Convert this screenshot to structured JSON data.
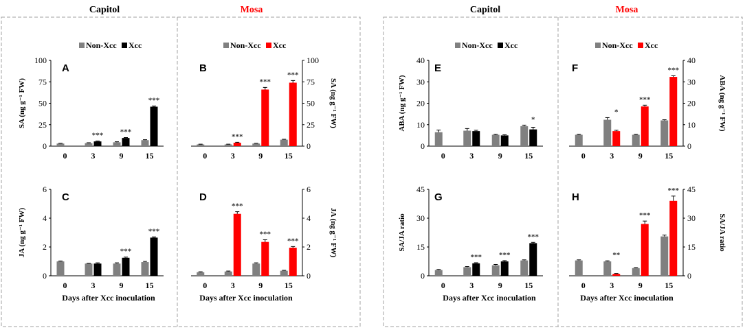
{
  "colors": {
    "non": "#808080",
    "capitol": "#000000",
    "mosa": "#ff0000",
    "mosa_title": "#ff0000",
    "frame": "#a0a0a0"
  },
  "headers": {
    "left_capitol": "Capitol",
    "left_mosa": "Mosa",
    "right_capitol": "Capitol",
    "right_mosa": "Mosa"
  },
  "legend": {
    "non": "Non-Xcc",
    "xcc": "Xcc"
  },
  "xlabel": "Days after Xcc inoculation",
  "chart_data": [
    {
      "id": "A",
      "type": "bar",
      "variety": "Capitol",
      "ylabel": "SA (ng g⁻¹ FW)",
      "ylim": [
        0,
        100
      ],
      "yticks": [
        "0",
        "25",
        "50",
        "75",
        "100"
      ],
      "categories": [
        "0",
        "3",
        "9",
        "15"
      ],
      "series": [
        {
          "name": "Non-Xcc",
          "values": [
            3,
            3.5,
            4.5,
            7
          ]
        },
        {
          "name": "Xcc",
          "values": [
            null,
            5.5,
            9.5,
            46
          ]
        }
      ],
      "errors": [
        [
          0.3,
          0.5,
          0.6,
          0.5
        ],
        [
          null,
          0.5,
          0.5,
          0.8
        ]
      ],
      "stars": [
        null,
        "***",
        "***",
        "***"
      ]
    },
    {
      "id": "B",
      "type": "bar",
      "variety": "Mosa",
      "ylabel": "SA (ng g⁻¹ FW)",
      "ylim": [
        0,
        100
      ],
      "yticks": [
        "0",
        "25",
        "50",
        "75",
        "100"
      ],
      "categories": [
        "0",
        "3",
        "9",
        "15"
      ],
      "series": [
        {
          "name": "Non-Xcc",
          "values": [
            2,
            2,
            3,
            7.5
          ]
        },
        {
          "name": "Xcc",
          "values": [
            null,
            4,
            66,
            74
          ]
        }
      ],
      "errors": [
        [
          0.3,
          0.3,
          0.3,
          0.5
        ],
        [
          null,
          0.5,
          2.5,
          2.5
        ]
      ],
      "stars": [
        null,
        "***",
        "***",
        "***"
      ]
    },
    {
      "id": "C",
      "type": "bar",
      "variety": "Capitol",
      "ylabel": "JA (ng g⁻¹ FW)",
      "ylim": [
        0,
        6
      ],
      "yticks": [
        "0",
        "2",
        "4",
        "6"
      ],
      "categories": [
        "0",
        "3",
        "9",
        "15"
      ],
      "series": [
        {
          "name": "Non-Xcc",
          "values": [
            1.0,
            0.85,
            0.85,
            0.95
          ]
        },
        {
          "name": "Xcc",
          "values": [
            null,
            0.85,
            1.25,
            2.65
          ]
        }
      ],
      "errors": [
        [
          0.03,
          0.03,
          0.05,
          0.05
        ],
        [
          null,
          0.05,
          0.05,
          0.05
        ]
      ],
      "stars": [
        null,
        null,
        "***",
        "***"
      ]
    },
    {
      "id": "D",
      "type": "bar",
      "variety": "Mosa",
      "ylabel": "JA (ng g⁻¹ FW)",
      "ylim": [
        0,
        6
      ],
      "yticks": [
        "0",
        "2",
        "4",
        "6"
      ],
      "categories": [
        "0",
        "3",
        "9",
        "15"
      ],
      "series": [
        {
          "name": "Non-Xcc",
          "values": [
            0.25,
            0.3,
            0.85,
            0.35
          ]
        },
        {
          "name": "Xcc",
          "values": [
            null,
            4.3,
            2.35,
            1.95
          ]
        }
      ],
      "errors": [
        [
          0.03,
          0.03,
          0.05,
          0.03
        ],
        [
          null,
          0.15,
          0.15,
          0.08
        ]
      ],
      "stars": [
        null,
        "***",
        "***",
        "***"
      ]
    },
    {
      "id": "E",
      "type": "bar",
      "variety": "Capitol",
      "ylabel": "ABA (ng g⁻¹ FW)",
      "ylim": [
        0,
        40
      ],
      "yticks": [
        "0",
        "10",
        "20",
        "30",
        "40"
      ],
      "categories": [
        "0",
        "3",
        "9",
        "15"
      ],
      "series": [
        {
          "name": "Non-Xcc",
          "values": [
            6.5,
            7.2,
            5.3,
            9.3
          ]
        },
        {
          "name": "Xcc",
          "values": [
            null,
            7.0,
            5.0,
            7.8
          ]
        }
      ],
      "errors": [
        [
          1.0,
          1.0,
          0.3,
          0.5
        ],
        [
          null,
          0.4,
          0.3,
          1.0
        ]
      ],
      "stars": [
        null,
        null,
        null,
        "*"
      ]
    },
    {
      "id": "F",
      "type": "bar",
      "variety": "Mosa",
      "ylabel": "ABA (ng g⁻¹ FW)",
      "ylim": [
        0,
        40
      ],
      "yticks": [
        "0",
        "10",
        "20",
        "30",
        "40"
      ],
      "categories": [
        "0",
        "3",
        "9",
        "15"
      ],
      "series": [
        {
          "name": "Non-Xcc",
          "values": [
            5.3,
            12.3,
            5.3,
            12.0
          ]
        },
        {
          "name": "Xcc",
          "values": [
            null,
            7.0,
            18.5,
            32.3
          ]
        }
      ],
      "errors": [
        [
          0.3,
          1.0,
          0.3,
          0.3
        ],
        [
          null,
          0.4,
          0.6,
          0.5
        ]
      ],
      "stars": [
        null,
        "*",
        "***",
        "***"
      ]
    },
    {
      "id": "G",
      "type": "bar",
      "variety": "Capitol",
      "ylabel": "SA/JA ratio",
      "ylim": [
        0,
        45
      ],
      "yticks": [
        "0",
        "15",
        "30",
        "45"
      ],
      "categories": [
        "0",
        "3",
        "9",
        "15"
      ],
      "series": [
        {
          "name": "Non-Xcc",
          "values": [
            3,
            4.5,
            5.5,
            8
          ]
        },
        {
          "name": "Xcc",
          "values": [
            null,
            6.5,
            7.5,
            17
          ]
        }
      ],
      "errors": [
        [
          0.3,
          0.3,
          0.4,
          0.3
        ],
        [
          null,
          0.3,
          0.4,
          0.4
        ]
      ],
      "stars": [
        null,
        "***",
        "***",
        "***"
      ]
    },
    {
      "id": "H",
      "type": "bar",
      "variety": "Mosa",
      "ylabel": "SA/JA ratio",
      "ylim": [
        0,
        45
      ],
      "yticks": [
        "0",
        "15",
        "30",
        "45"
      ],
      "categories": [
        "0",
        "3",
        "9",
        "15"
      ],
      "series": [
        {
          "name": "Non-Xcc",
          "values": [
            8,
            7.5,
            4,
            20.5
          ]
        },
        {
          "name": "Xcc",
          "values": [
            null,
            1,
            27,
            39
          ]
        }
      ],
      "errors": [
        [
          0.3,
          0.3,
          0.3,
          0.7
        ],
        [
          null,
          0.2,
          1.5,
          2.5
        ]
      ],
      "stars": [
        null,
        "**",
        "***",
        "***"
      ]
    }
  ]
}
